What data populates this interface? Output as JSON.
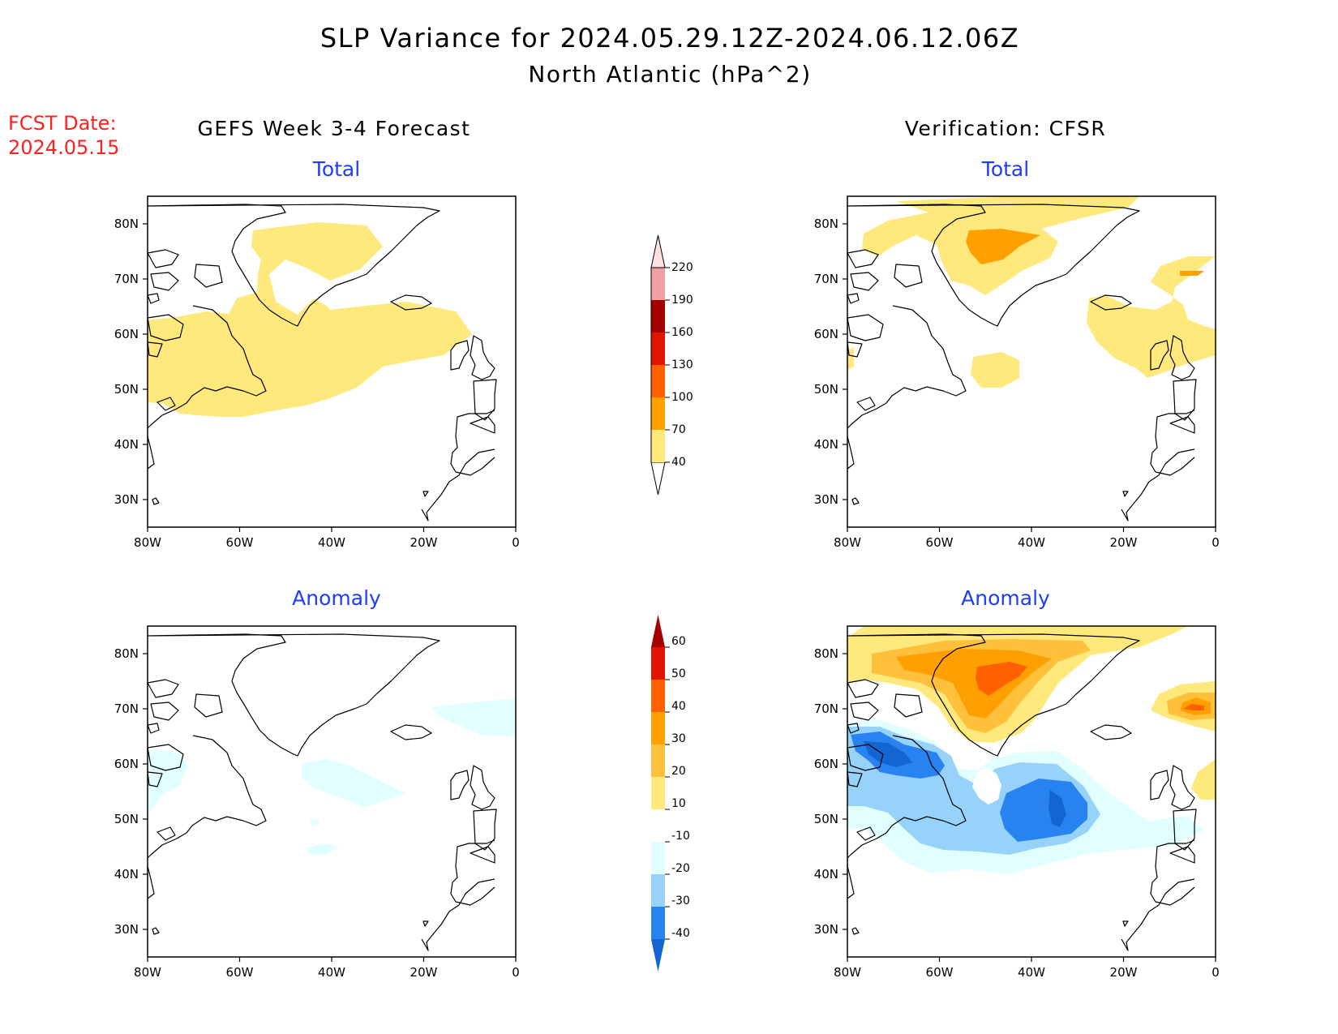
{
  "title_line1": "SLP Variance for 2024.05.29.12Z-2024.06.12.06Z",
  "title_line2": "North Atlantic (hPa^2)",
  "fcst_label": "FCST Date:",
  "fcst_date": "2024.05.15",
  "left_column_title": "GEFS Week 3-4 Forecast",
  "right_column_title": "Verification: CFSR",
  "panel_titles": {
    "total": "Total",
    "anomaly": "Anomaly"
  },
  "colors": {
    "title_blue": "#1e3cff",
    "fcst_red": "#ff2020"
  },
  "map_axes": {
    "lon_labels": [
      "80W",
      "60W",
      "40W",
      "20W",
      "0"
    ],
    "lat_labels": [
      "80N",
      "70N",
      "60N",
      "50N",
      "40N",
      "30N"
    ],
    "lon_range": [
      -80,
      0
    ],
    "lat_range": [
      25,
      85
    ]
  },
  "colorbars": {
    "total": {
      "levels": [
        "40",
        "70",
        "100",
        "130",
        "160",
        "190",
        "220"
      ],
      "colors": [
        "#ffe87c",
        "#ffa000",
        "#ff6000",
        "#e11400",
        "#a50000",
        "#f0a0a0",
        "#ffe0e0"
      ]
    },
    "anomaly": {
      "levels": [
        "-40",
        "-30",
        "-20",
        "-10",
        "10",
        "20",
        "30",
        "40",
        "50",
        "60"
      ],
      "colors": [
        "#1464d2",
        "#2882f0",
        "#96d2fa",
        "#e1ffff",
        "#ffffff",
        "#ffe87c",
        "#ffc03c",
        "#ffa000",
        "#ff6000",
        "#e11400",
        "#a50000"
      ]
    }
  }
}
